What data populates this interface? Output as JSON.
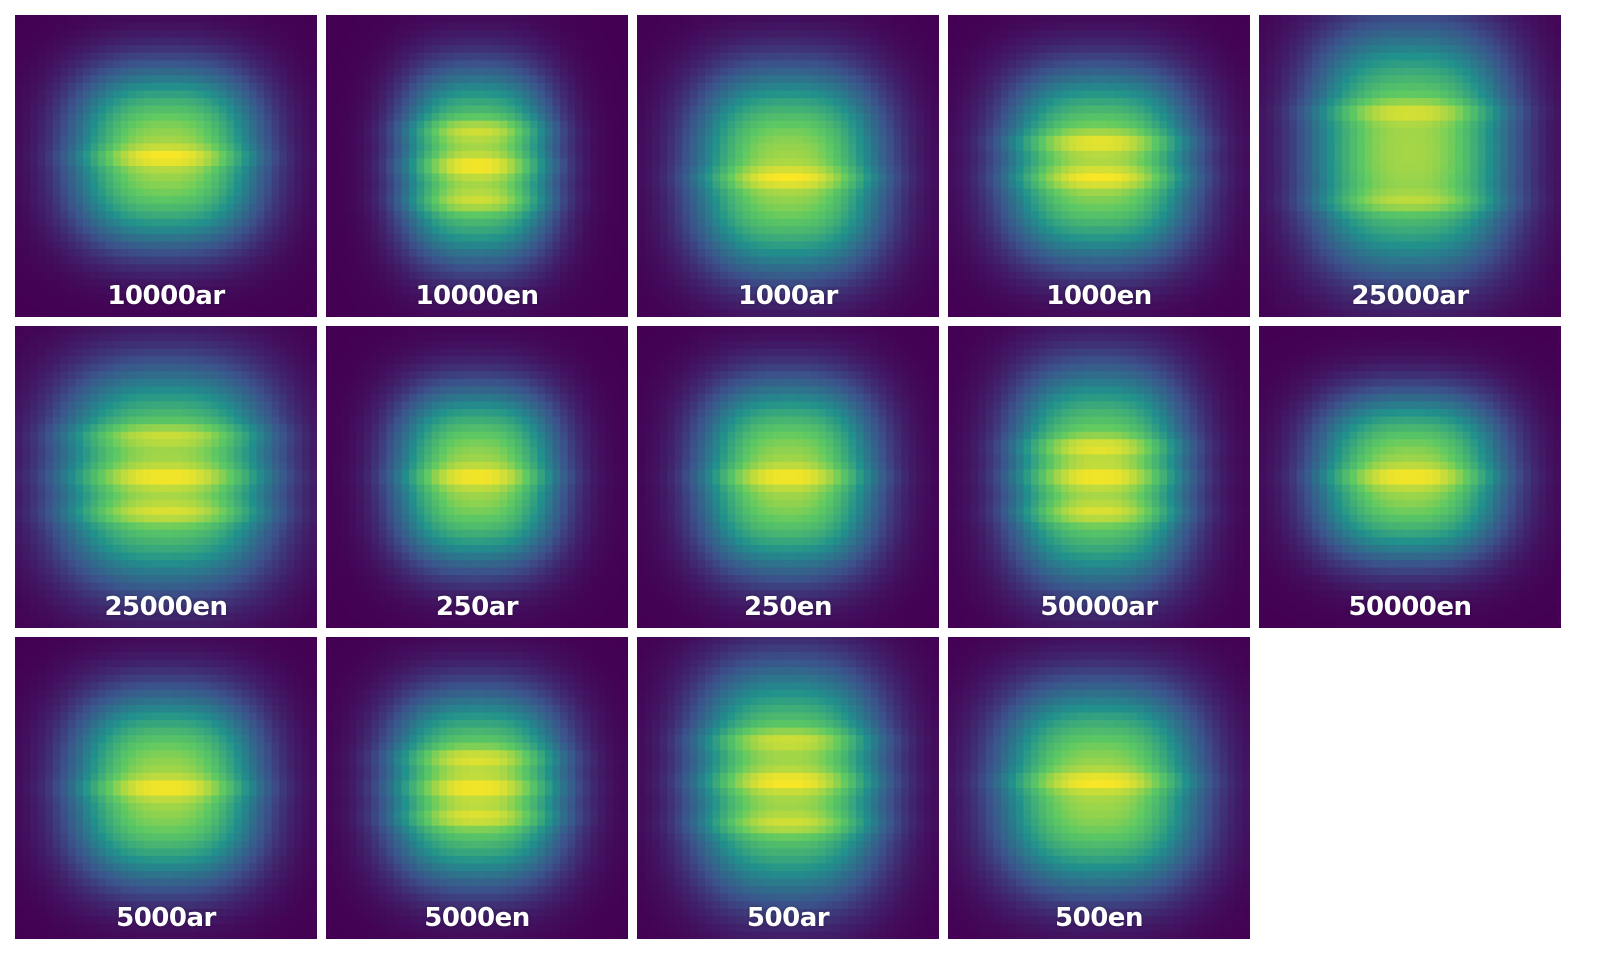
{
  "chart_data": {
    "type": "heatmap",
    "colormap": "viridis",
    "colors": [
      "#440154",
      "#3b528b",
      "#21918c",
      "#5ec962",
      "#fde725"
    ],
    "panels": [
      {
        "title": "10000ar",
        "center_y": 0.47,
        "spread_x": 0.3,
        "spread_y": 0.28,
        "bands": [
          0.47
        ]
      },
      {
        "title": "10000en",
        "center_y": 0.5,
        "spread_x": 0.24,
        "spread_y": 0.3,
        "bands": [
          0.38,
          0.5,
          0.62
        ]
      },
      {
        "title": "1000ar",
        "center_y": 0.52,
        "spread_x": 0.3,
        "spread_y": 0.32,
        "bands": [
          0.54
        ]
      },
      {
        "title": "1000en",
        "center_y": 0.5,
        "spread_x": 0.3,
        "spread_y": 0.3,
        "bands": [
          0.42,
          0.54
        ]
      },
      {
        "title": "25000ar",
        "center_y": 0.45,
        "spread_x": 0.32,
        "spread_y": 0.38,
        "bands": [
          0.32,
          0.62
        ]
      },
      {
        "title": "25000en",
        "center_y": 0.5,
        "spread_x": 0.34,
        "spread_y": 0.34,
        "bands": [
          0.36,
          0.5,
          0.62
        ]
      },
      {
        "title": "250ar",
        "center_y": 0.5,
        "spread_x": 0.26,
        "spread_y": 0.28,
        "bands": [
          0.5
        ]
      },
      {
        "title": "250en",
        "center_y": 0.5,
        "spread_x": 0.28,
        "spread_y": 0.3,
        "bands": [
          0.5
        ]
      },
      {
        "title": "50000ar",
        "center_y": 0.5,
        "spread_x": 0.28,
        "spread_y": 0.34,
        "bands": [
          0.4,
          0.5,
          0.62
        ]
      },
      {
        "title": "50000en",
        "center_y": 0.5,
        "spread_x": 0.3,
        "spread_y": 0.26,
        "bands": [
          0.5
        ]
      },
      {
        "title": "5000ar",
        "center_y": 0.5,
        "spread_x": 0.3,
        "spread_y": 0.3,
        "bands": [
          0.5
        ]
      },
      {
        "title": "5000en",
        "center_y": 0.5,
        "spread_x": 0.28,
        "spread_y": 0.3,
        "bands": [
          0.4,
          0.5,
          0.6
        ]
      },
      {
        "title": "500ar",
        "center_y": 0.48,
        "spread_x": 0.3,
        "spread_y": 0.36,
        "bands": [
          0.34,
          0.48,
          0.62
        ]
      },
      {
        "title": "500en",
        "center_y": 0.5,
        "spread_x": 0.32,
        "spread_y": 0.32,
        "bands": [
          0.48
        ]
      }
    ]
  }
}
